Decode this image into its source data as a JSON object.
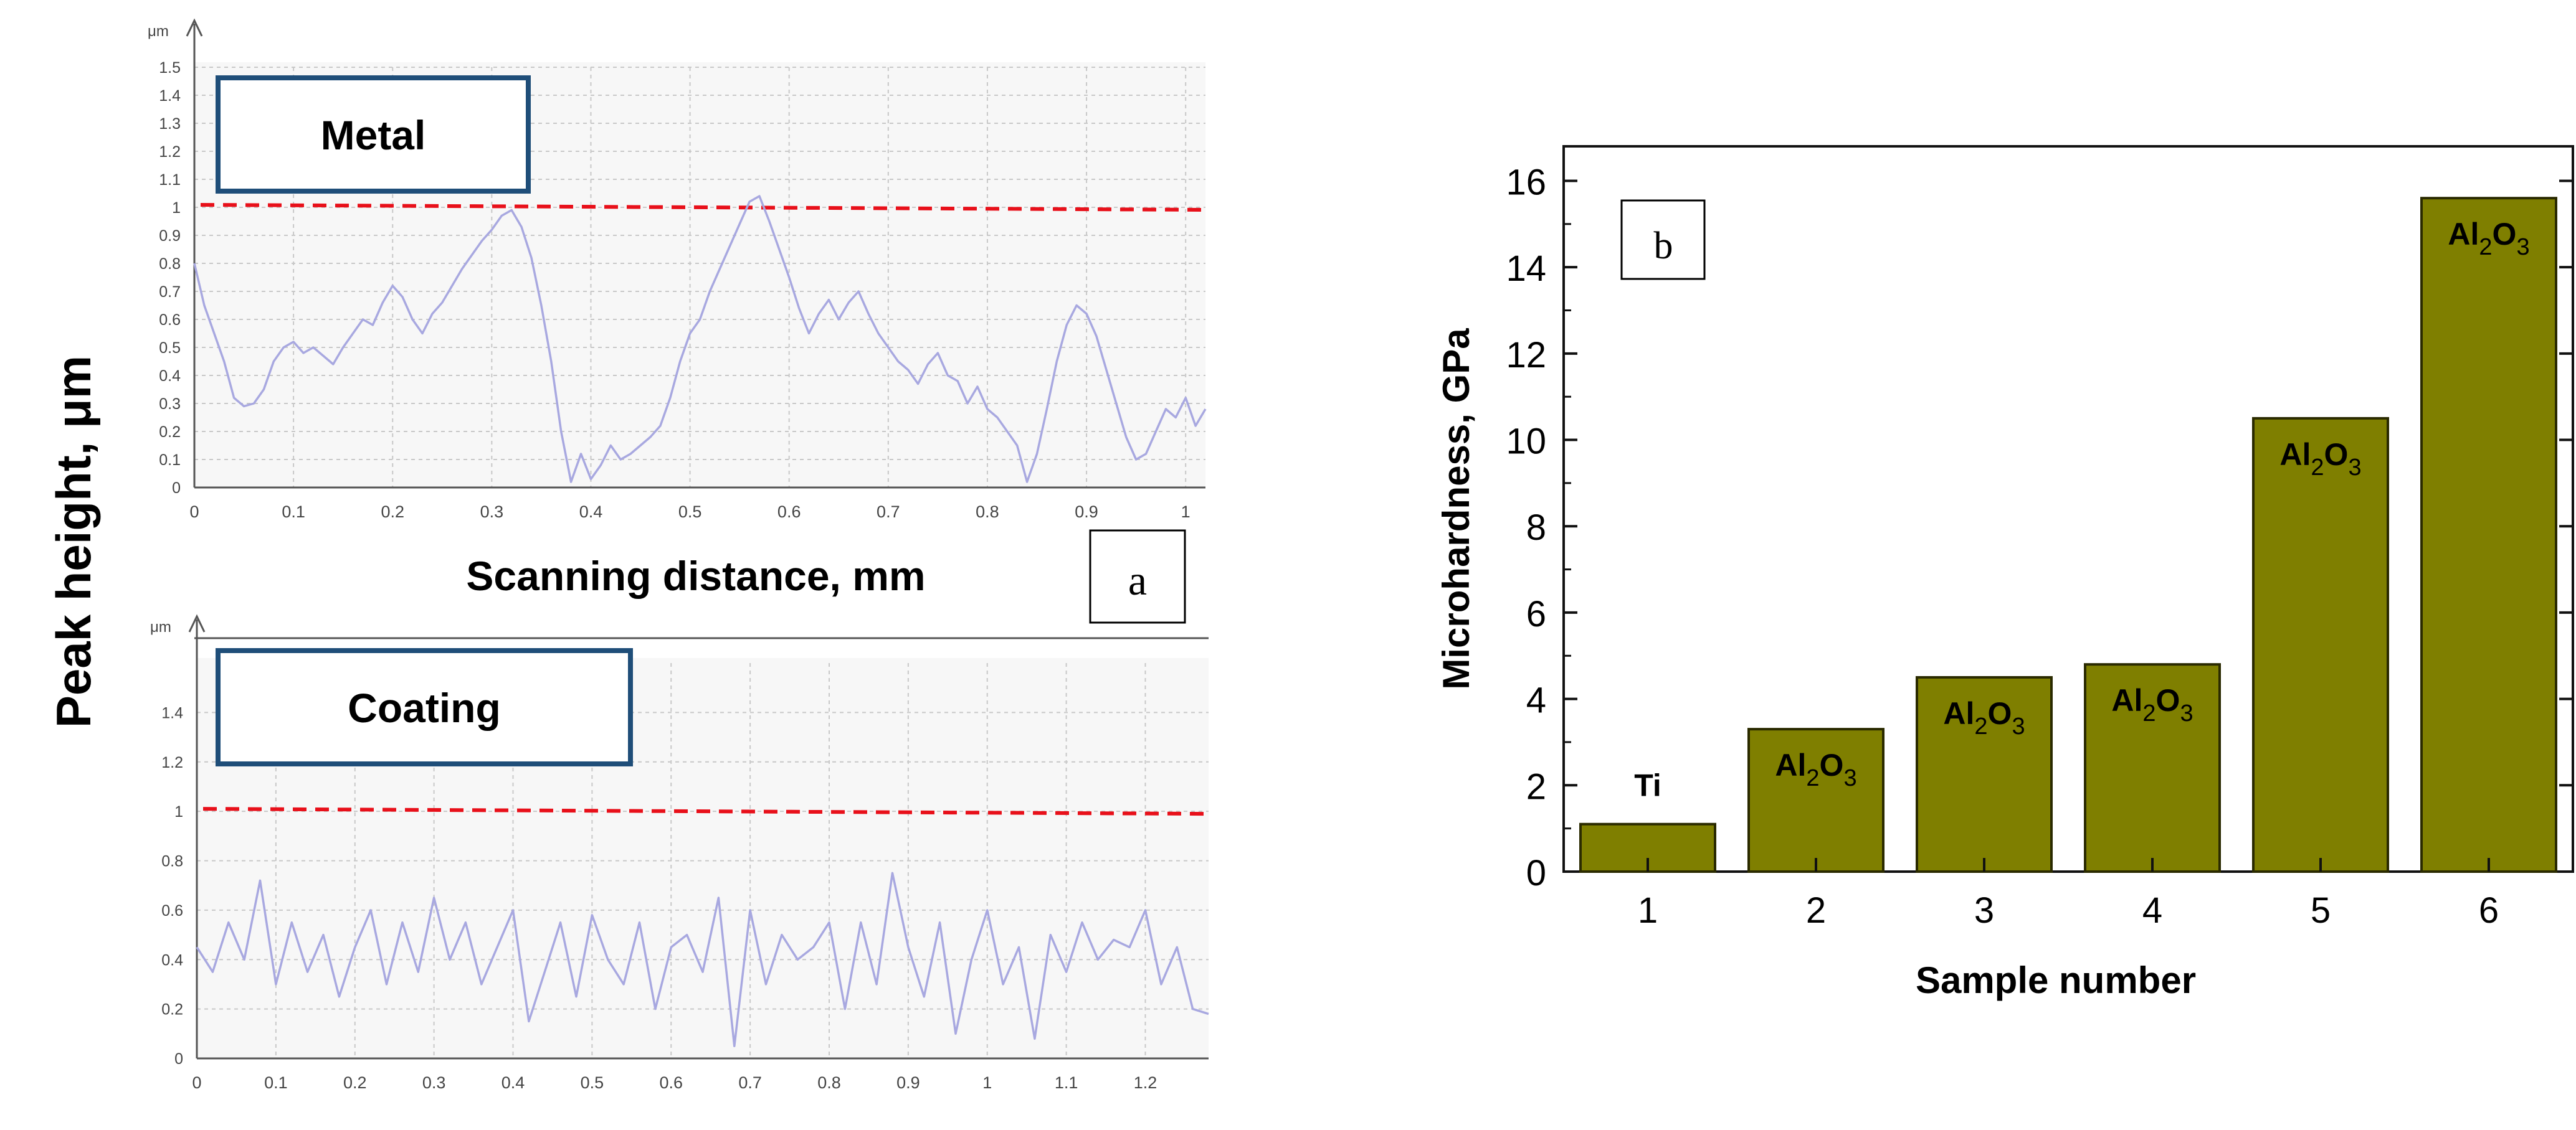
{
  "figure": {
    "shared_ylabel": "Peak height, μm"
  },
  "chart_data": [
    {
      "id": "a-top",
      "type": "line",
      "unit_label": "μm",
      "box_label": "Metal",
      "xlabel": "Scanning distance, mm",
      "panel_letter": "a",
      "xlim": [
        0,
        1.02
      ],
      "ylim": [
        0,
        1.5
      ],
      "xticks": [
        "0",
        "0.1",
        "0.2",
        "0.3",
        "0.4",
        "0.5",
        "0.6",
        "0.7",
        "0.8",
        "0.9",
        "1"
      ],
      "yticks": [
        "0",
        "0.1",
        "0.2",
        "0.3",
        "0.4",
        "0.5",
        "0.6",
        "0.7",
        "0.8",
        "0.9",
        "1",
        "1.1",
        "1.2",
        "1.3",
        "1.4",
        "1.5"
      ],
      "grid": true,
      "reference_line": 1.0,
      "line_color": "#a8a8e0",
      "ref_color": "#e8101a",
      "series": [
        {
          "x": [
            0,
            0.01,
            0.02,
            0.03,
            0.04,
            0.05,
            0.06,
            0.07,
            0.08,
            0.09,
            0.1,
            0.11,
            0.12,
            0.13,
            0.14,
            0.15,
            0.16,
            0.17,
            0.18,
            0.19,
            0.2,
            0.21,
            0.22,
            0.23,
            0.24,
            0.25,
            0.26,
            0.27,
            0.28,
            0.29,
            0.3,
            0.31,
            0.32,
            0.33,
            0.34,
            0.35,
            0.36,
            0.37,
            0.38,
            0.39,
            0.4,
            0.41,
            0.42,
            0.43,
            0.44,
            0.45,
            0.46,
            0.47,
            0.48,
            0.49,
            0.5,
            0.51,
            0.52,
            0.53,
            0.54,
            0.55,
            0.56,
            0.57,
            0.58,
            0.59,
            0.6,
            0.61,
            0.62,
            0.63,
            0.64,
            0.65,
            0.66,
            0.67,
            0.68,
            0.69,
            0.7,
            0.71,
            0.72,
            0.73,
            0.74,
            0.75,
            0.76,
            0.77,
            0.78,
            0.79,
            0.8,
            0.81,
            0.82,
            0.83,
            0.84,
            0.85,
            0.86,
            0.87,
            0.88,
            0.89,
            0.9,
            0.91,
            0.92,
            0.93,
            0.94,
            0.95,
            0.96,
            0.97,
            0.98,
            0.99,
            1.0,
            1.01,
            1.02
          ],
          "y": [
            0.8,
            0.65,
            0.55,
            0.45,
            0.32,
            0.29,
            0.3,
            0.35,
            0.45,
            0.5,
            0.52,
            0.48,
            0.5,
            0.47,
            0.44,
            0.5,
            0.55,
            0.6,
            0.58,
            0.66,
            0.72,
            0.68,
            0.6,
            0.55,
            0.62,
            0.66,
            0.72,
            0.78,
            0.83,
            0.88,
            0.92,
            0.97,
            0.99,
            0.93,
            0.82,
            0.65,
            0.45,
            0.2,
            0.02,
            0.12,
            0.03,
            0.08,
            0.15,
            0.1,
            0.12,
            0.15,
            0.18,
            0.22,
            0.32,
            0.45,
            0.55,
            0.6,
            0.7,
            0.78,
            0.86,
            0.94,
            1.02,
            1.04,
            0.95,
            0.85,
            0.75,
            0.64,
            0.55,
            0.62,
            0.67,
            0.6,
            0.66,
            0.7,
            0.62,
            0.55,
            0.5,
            0.45,
            0.42,
            0.37,
            0.44,
            0.48,
            0.4,
            0.38,
            0.3,
            0.36,
            0.28,
            0.25,
            0.2,
            0.15,
            0.02,
            0.12,
            0.28,
            0.45,
            0.58,
            0.65,
            0.62,
            0.54,
            0.42,
            0.3,
            0.18,
            0.1,
            0.12,
            0.2,
            0.28,
            0.25,
            0.32,
            0.22,
            0.28
          ]
        }
      ]
    },
    {
      "id": "a-bottom",
      "type": "line",
      "unit_label": "μm",
      "box_label": "Coating",
      "xlim": [
        0,
        1.28
      ],
      "ylim": [
        0,
        1.6
      ],
      "xticks": [
        "0",
        "0.1",
        "0.2",
        "0.3",
        "0.4",
        "0.5",
        "0.6",
        "0.7",
        "0.8",
        "0.9",
        "1",
        "1.1",
        "1.2"
      ],
      "yticks": [
        "0",
        "0.2",
        "0.4",
        "0.6",
        "0.8",
        "1",
        "1.2",
        "1.4"
      ],
      "grid": true,
      "reference_line": 1.0,
      "line_color": "#a8a8e0",
      "ref_color": "#e8101a",
      "series": [
        {
          "x": [
            0,
            0.02,
            0.04,
            0.06,
            0.08,
            0.1,
            0.12,
            0.14,
            0.16,
            0.18,
            0.2,
            0.22,
            0.24,
            0.26,
            0.28,
            0.3,
            0.32,
            0.34,
            0.36,
            0.38,
            0.4,
            0.42,
            0.44,
            0.46,
            0.48,
            0.5,
            0.52,
            0.54,
            0.56,
            0.58,
            0.6,
            0.62,
            0.64,
            0.66,
            0.68,
            0.7,
            0.72,
            0.74,
            0.76,
            0.78,
            0.8,
            0.82,
            0.84,
            0.86,
            0.88,
            0.9,
            0.92,
            0.94,
            0.96,
            0.98,
            1.0,
            1.02,
            1.04,
            1.06,
            1.08,
            1.1,
            1.12,
            1.14,
            1.16,
            1.18,
            1.2,
            1.22,
            1.24,
            1.26,
            1.28
          ],
          "y": [
            0.45,
            0.35,
            0.55,
            0.4,
            0.72,
            0.3,
            0.55,
            0.35,
            0.5,
            0.25,
            0.45,
            0.6,
            0.3,
            0.55,
            0.35,
            0.65,
            0.4,
            0.55,
            0.3,
            0.45,
            0.6,
            0.15,
            0.35,
            0.55,
            0.25,
            0.58,
            0.4,
            0.3,
            0.55,
            0.2,
            0.45,
            0.5,
            0.35,
            0.65,
            0.05,
            0.6,
            0.3,
            0.5,
            0.4,
            0.45,
            0.55,
            0.2,
            0.55,
            0.3,
            0.75,
            0.45,
            0.25,
            0.55,
            0.1,
            0.4,
            0.6,
            0.3,
            0.45,
            0.08,
            0.5,
            0.35,
            0.55,
            0.4,
            0.48,
            0.45,
            0.6,
            0.3,
            0.45,
            0.2,
            0.18
          ]
        }
      ]
    },
    {
      "id": "b",
      "type": "bar",
      "panel_letter": "b",
      "xlabel": "Sample number",
      "ylabel": "Microhardness, GPa",
      "categories": [
        "1",
        "2",
        "3",
        "4",
        "5",
        "6"
      ],
      "values": [
        1.1,
        3.3,
        4.5,
        4.8,
        10.5,
        15.6
      ],
      "bar_labels": [
        {
          "main": "Ti",
          "sub": ""
        },
        {
          "main": "Al",
          "sub": "2",
          "main2": "O",
          "sub2": "3"
        },
        {
          "main": "Al",
          "sub": "2",
          "main2": "O",
          "sub2": "3"
        },
        {
          "main": "Al",
          "sub": "2",
          "main2": "O",
          "sub2": "3"
        },
        {
          "main": "Al",
          "sub": "2",
          "main2": "O",
          "sub2": "3"
        },
        {
          "main": "Al",
          "sub": "2",
          "main2": "O",
          "sub2": "3"
        }
      ],
      "ylim": [
        0,
        16.8
      ],
      "yticks": [
        "0",
        "2",
        "4",
        "6",
        "8",
        "10",
        "12",
        "14",
        "16"
      ],
      "bar_color": "#7f7f00",
      "grid": false
    }
  ]
}
